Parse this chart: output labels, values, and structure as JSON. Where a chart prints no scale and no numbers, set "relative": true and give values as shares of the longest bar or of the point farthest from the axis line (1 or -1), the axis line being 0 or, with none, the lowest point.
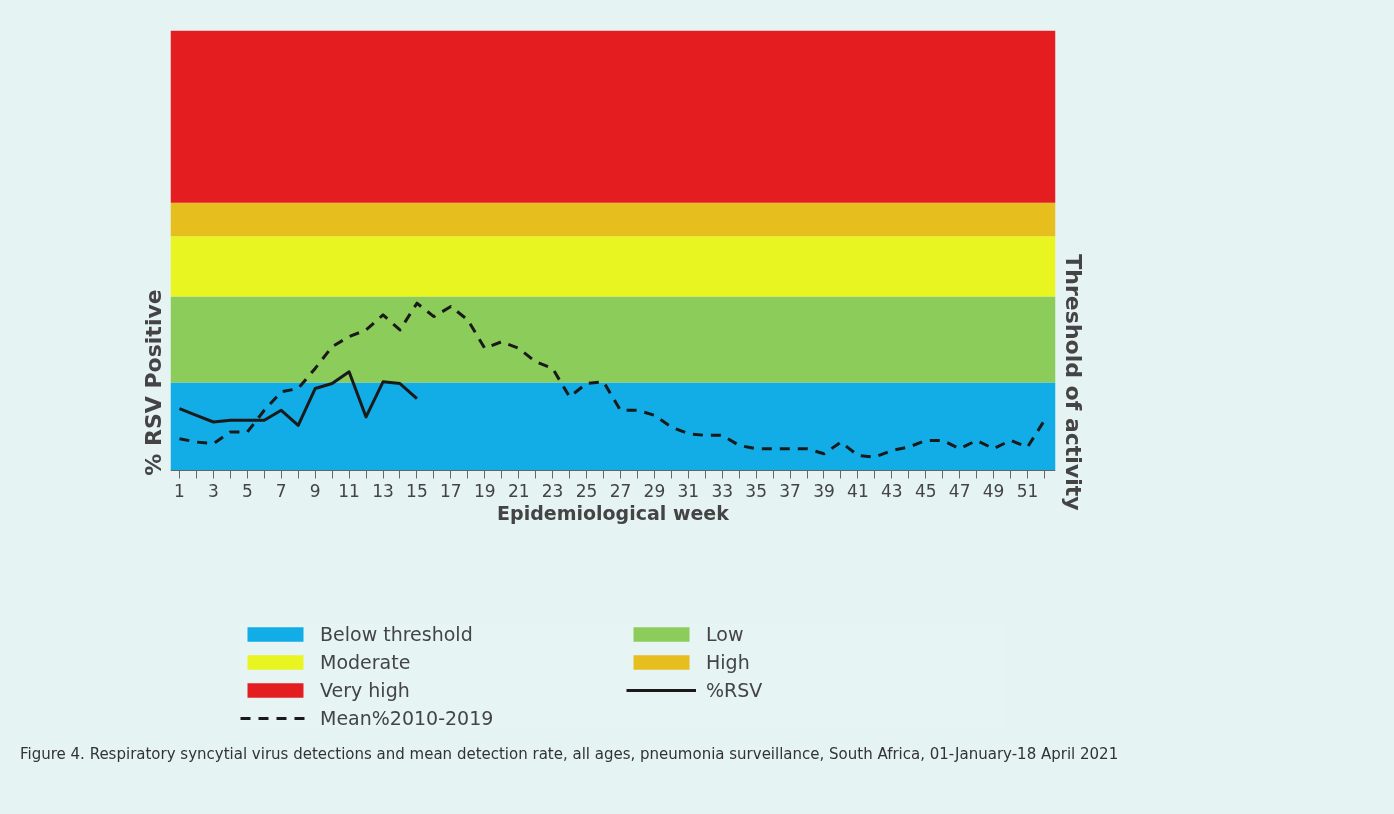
{
  "chart_data": {
    "type": "line",
    "relative": true,
    "xlabel": "Epidemiological week",
    "ylabel": "% RSV Positive",
    "y2label": "Threshold of activity",
    "x": [
      1,
      2,
      3,
      4,
      5,
      6,
      7,
      8,
      9,
      10,
      11,
      12,
      13,
      14,
      15,
      16,
      17,
      18,
      19,
      20,
      21,
      22,
      23,
      24,
      25,
      26,
      27,
      28,
      29,
      30,
      31,
      32,
      33,
      34,
      35,
      36,
      37,
      38,
      39,
      40,
      41,
      42,
      43,
      44,
      45,
      46,
      47,
      48,
      49,
      50,
      51,
      52
    ],
    "xlim": [
      0.47,
      52.65
    ],
    "xticks": [
      1,
      {
        "value": 2,
        "label": null
      },
      3,
      {
        "value": 4,
        "label": null
      },
      5,
      {
        "value": 6,
        "label": null
      },
      7,
      {
        "value": 8,
        "label": null
      },
      9,
      {
        "value": 10,
        "label": null
      },
      11,
      {
        "value": 12,
        "label": null
      },
      13,
      {
        "value": 14,
        "label": null
      },
      15,
      {
        "value": 16,
        "label": null
      },
      17,
      {
        "value": 18,
        "label": null
      },
      19,
      {
        "value": 20,
        "label": null
      },
      21,
      {
        "value": 22,
        "label": null
      },
      23,
      {
        "value": 24,
        "label": null
      },
      25,
      {
        "value": 26,
        "label": null
      },
      27,
      {
        "value": 28,
        "label": null
      },
      29,
      {
        "value": 30,
        "label": null
      },
      31,
      {
        "value": 32,
        "label": null
      },
      33,
      {
        "value": 34,
        "label": null
      },
      35,
      {
        "value": 36,
        "label": null
      },
      37,
      {
        "value": 38,
        "label": null
      },
      39,
      {
        "value": 40,
        "label": null
      },
      41,
      {
        "value": 42,
        "label": null
      },
      43,
      {
        "value": 44,
        "label": null
      },
      45,
      {
        "value": 46,
        "label": null
      },
      47,
      {
        "value": 48,
        "label": null
      },
      49,
      {
        "value": 50,
        "label": null
      },
      51,
      {
        "value": 52,
        "label": null
      }
    ],
    "tick_labels": "x",
    "grid": false,
    "legend": "bottom",
    "marker": "none",
    "bands": [
      {
        "axis": "y",
        "from": 0,
        "to": 0.526,
        "label": "Below threshold",
        "color": "#12ace6"
      },
      {
        "axis": "y",
        "from": 0.526,
        "to": 1.04,
        "label": "Low",
        "color": "#8ccc5a"
      },
      {
        "axis": "y",
        "from": 1.04,
        "to": 1.4,
        "label": "Moderate",
        "color": "#e8f520"
      },
      {
        "axis": "y",
        "from": 1.4,
        "to": 1.6,
        "label": "High",
        "color": "#e6be1e"
      },
      {
        "axis": "y",
        "from": 1.6,
        "to": 2.63,
        "label": "Very high",
        "color": "#e41e20"
      }
    ],
    "series": [
      {
        "name": "%RSV",
        "color": "#1a1a1a",
        "line_style": "solid",
        "values": [
          0.37,
          0.33,
          0.29,
          0.3,
          0.3,
          0.3,
          0.36,
          0.27,
          0.49,
          0.52,
          0.59,
          0.32,
          0.53,
          0.52,
          0.43,
          null,
          null,
          null,
          null,
          null,
          null,
          null,
          null,
          null,
          null,
          null,
          null,
          null,
          null,
          null,
          null,
          null,
          null,
          null,
          null,
          null,
          null,
          null,
          null,
          null,
          null,
          null,
          null,
          null,
          null,
          null,
          null,
          null,
          null,
          null,
          null,
          null
        ]
      },
      {
        "name": "Mean%2010-2019",
        "color": "#1a1a1a",
        "line_style": "dashed",
        "values": [
          0.19,
          0.17,
          0.16,
          0.23,
          0.23,
          0.36,
          0.47,
          0.49,
          0.61,
          0.74,
          0.8,
          0.84,
          0.93,
          0.84,
          1.0,
          0.92,
          0.98,
          0.9,
          0.73,
          0.77,
          0.73,
          0.65,
          0.61,
          0.44,
          0.52,
          0.53,
          0.36,
          0.36,
          0.33,
          0.26,
          0.22,
          0.21,
          0.21,
          0.15,
          0.13,
          0.13,
          0.13,
          0.13,
          0.1,
          0.17,
          0.09,
          0.08,
          0.12,
          0.14,
          0.18,
          0.18,
          0.13,
          0.18,
          0.13,
          0.18,
          0.14,
          0.3
        ]
      }
    ],
    "annotations": [
      "Figure 4. Respiratory syncytial virus detections and mean detection rate, all ages, pneumonia surveillance, South Africa, 01-January-18 April 2021"
    ]
  }
}
